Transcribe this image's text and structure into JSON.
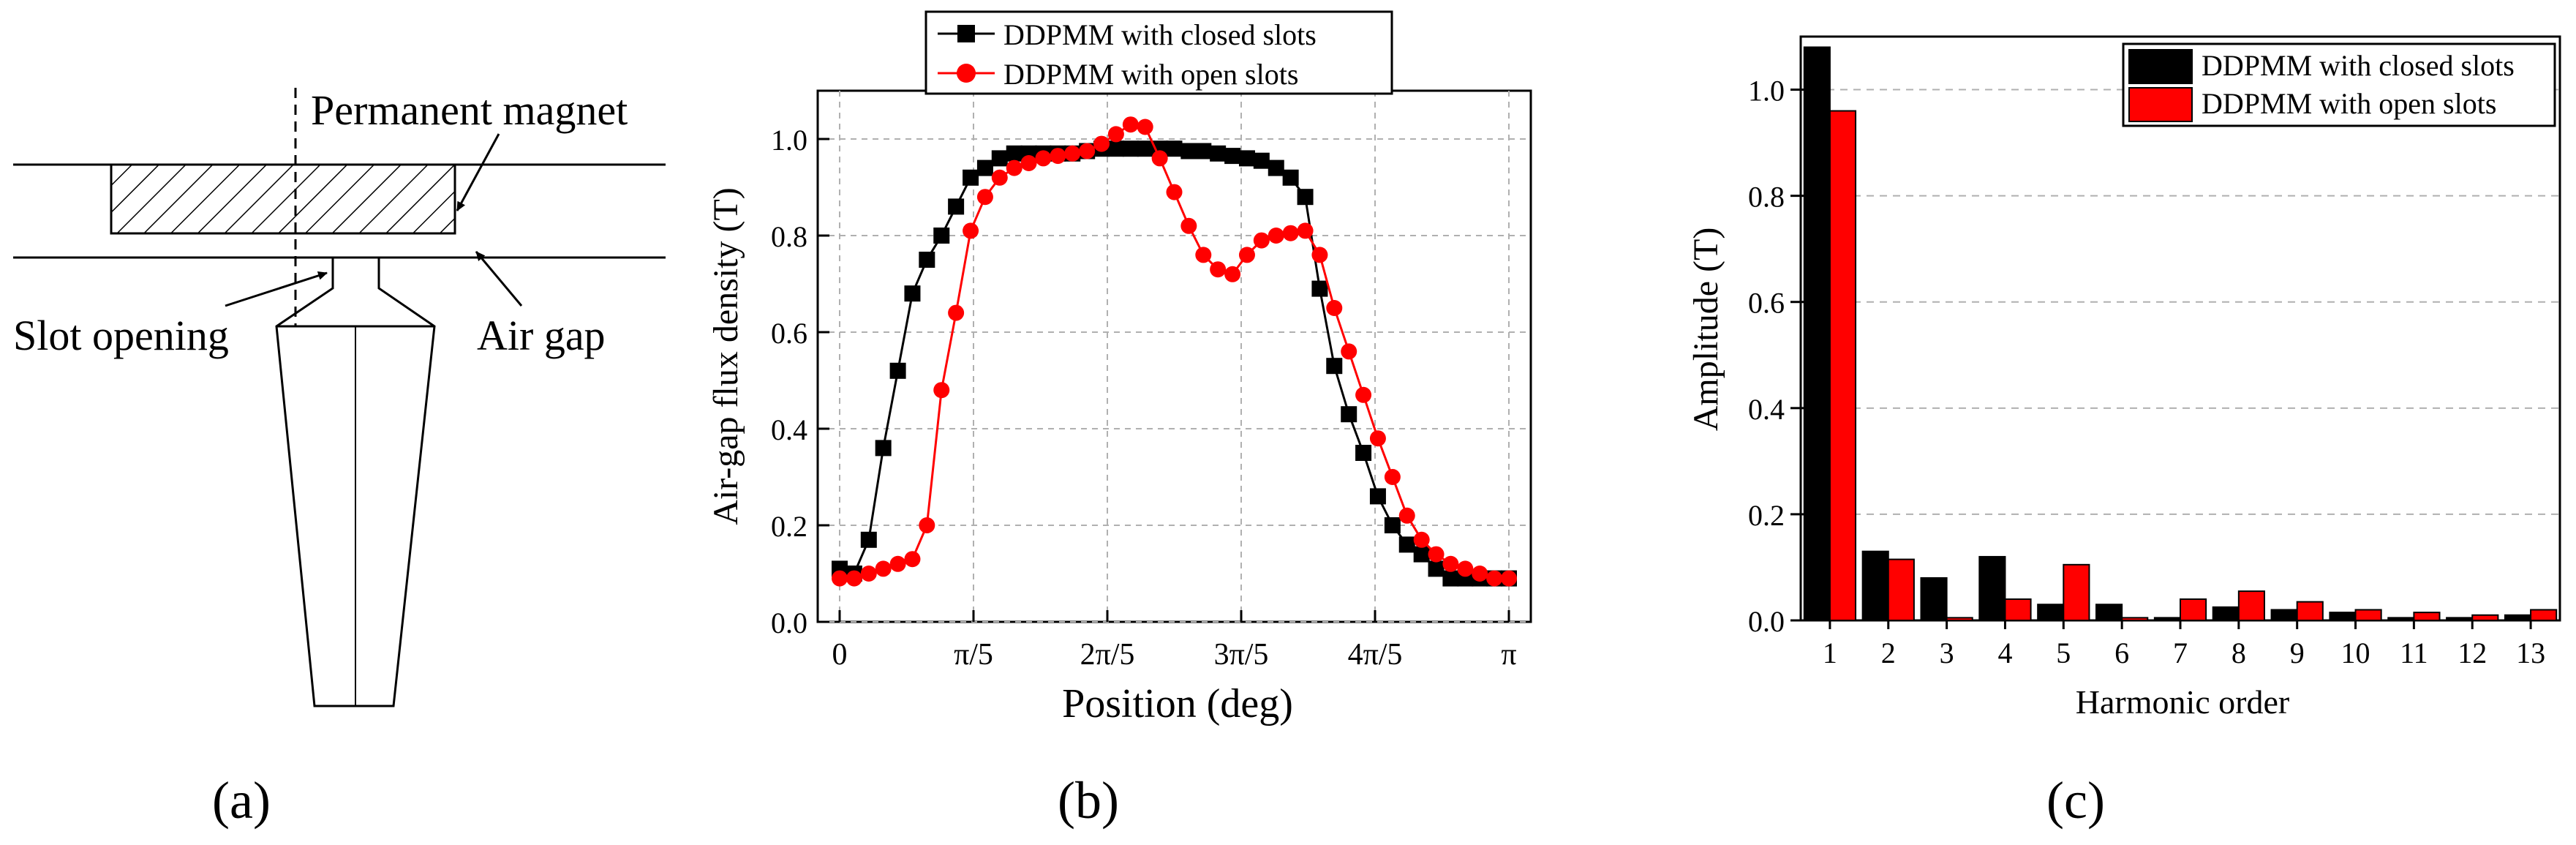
{
  "panel_a": {
    "label": "(a)",
    "permanent_magnet": "Permanent magnet",
    "slot_opening": "Slot opening",
    "air_gap": "Air gap"
  },
  "panel_b": {
    "label": "(b)"
  },
  "panel_c": {
    "label": "(c)"
  },
  "chart_data": [
    {
      "type": "line",
      "title": "",
      "xlabel": "Position (deg)",
      "ylabel": "Air-gap flux density (T)",
      "xlim": [
        0,
        1
      ],
      "ylim": [
        0,
        1.1
      ],
      "x_ticks": [
        0,
        0.2,
        0.4,
        0.6,
        0.8,
        1.0
      ],
      "x_tick_labels": [
        "0",
        "π/5",
        "2π/5",
        "3π/5",
        "4π/5",
        "π"
      ],
      "y_ticks": [
        0,
        0.2,
        0.4,
        0.6,
        0.8,
        1.0
      ],
      "y_tick_labels": [
        "0.0",
        "0.2",
        "0.4",
        "0.6",
        "0.8",
        "1.0"
      ],
      "grid": true,
      "legend_position": "top-center outside",
      "series": [
        {
          "name": "DDPMM with closed slots",
          "color": "#000000",
          "marker": "square",
          "x": [
            0.0,
            0.0217,
            0.0435,
            0.0652,
            0.087,
            0.1087,
            0.1304,
            0.1522,
            0.1739,
            0.1957,
            0.2174,
            0.2391,
            0.2609,
            0.2826,
            0.3043,
            0.3261,
            0.3478,
            0.3696,
            0.3913,
            0.413,
            0.4348,
            0.4565,
            0.4783,
            0.5,
            0.5217,
            0.5435,
            0.5652,
            0.587,
            0.6087,
            0.6304,
            0.6522,
            0.6739,
            0.6957,
            0.7174,
            0.7391,
            0.7609,
            0.7826,
            0.8043,
            0.8261,
            0.8478,
            0.8696,
            0.8913,
            0.913,
            0.9348,
            0.9565,
            0.9783,
            1.0
          ],
          "y": [
            0.11,
            0.1,
            0.17,
            0.36,
            0.52,
            0.68,
            0.75,
            0.8,
            0.86,
            0.92,
            0.94,
            0.96,
            0.97,
            0.97,
            0.97,
            0.97,
            0.97,
            0.975,
            0.98,
            0.98,
            0.98,
            0.98,
            0.98,
            0.98,
            0.975,
            0.975,
            0.97,
            0.965,
            0.96,
            0.955,
            0.94,
            0.92,
            0.88,
            0.69,
            0.53,
            0.43,
            0.35,
            0.26,
            0.2,
            0.16,
            0.14,
            0.11,
            0.09,
            0.09,
            0.09,
            0.09,
            0.09
          ]
        },
        {
          "name": "DDPMM with open slots",
          "color": "#ff0000",
          "marker": "circle",
          "x": [
            0.0,
            0.0217,
            0.0435,
            0.0652,
            0.087,
            0.1087,
            0.1304,
            0.1522,
            0.1739,
            0.1957,
            0.2174,
            0.2391,
            0.2609,
            0.2826,
            0.3043,
            0.3261,
            0.3478,
            0.3696,
            0.3913,
            0.413,
            0.4348,
            0.4565,
            0.4783,
            0.5,
            0.5217,
            0.5435,
            0.5652,
            0.587,
            0.6087,
            0.6304,
            0.6522,
            0.6739,
            0.6957,
            0.7174,
            0.7391,
            0.7609,
            0.7826,
            0.8043,
            0.8261,
            0.8478,
            0.8696,
            0.8913,
            0.913,
            0.9348,
            0.9565,
            0.9783,
            1.0
          ],
          "y": [
            0.09,
            0.09,
            0.1,
            0.11,
            0.12,
            0.13,
            0.2,
            0.48,
            0.64,
            0.81,
            0.88,
            0.92,
            0.94,
            0.95,
            0.96,
            0.965,
            0.97,
            0.975,
            0.99,
            1.01,
            1.03,
            1.025,
            0.96,
            0.89,
            0.82,
            0.76,
            0.73,
            0.72,
            0.76,
            0.79,
            0.8,
            0.805,
            0.81,
            0.76,
            0.65,
            0.56,
            0.47,
            0.38,
            0.3,
            0.22,
            0.17,
            0.14,
            0.12,
            0.11,
            0.1,
            0.09,
            0.09
          ]
        }
      ]
    },
    {
      "type": "bar",
      "title": "",
      "xlabel": "Harmonic order",
      "ylabel": "Amplitude (T)",
      "ylim": [
        0,
        1.1
      ],
      "y_ticks": [
        0,
        0.2,
        0.4,
        0.6,
        0.8,
        1.0
      ],
      "y_tick_labels": [
        "0.0",
        "0.2",
        "0.4",
        "0.6",
        "0.8",
        "1.0"
      ],
      "categories": [
        "1",
        "2",
        "3",
        "4",
        "5",
        "6",
        "7",
        "8",
        "9",
        "10",
        "11",
        "12",
        "13"
      ],
      "grid": true,
      "legend_position": "top-right",
      "series": [
        {
          "name": "DDPMM with closed slots",
          "color": "#000000",
          "values": [
            1.08,
            0.13,
            0.08,
            0.12,
            0.03,
            0.03,
            0.005,
            0.025,
            0.02,
            0.015,
            0.005,
            0.005,
            0.01
          ]
        },
        {
          "name": "DDPMM with open slots",
          "color": "#ff0000",
          "values": [
            0.96,
            0.115,
            0.005,
            0.04,
            0.105,
            0.005,
            0.04,
            0.055,
            0.035,
            0.02,
            0.015,
            0.01,
            0.02
          ]
        }
      ]
    }
  ]
}
